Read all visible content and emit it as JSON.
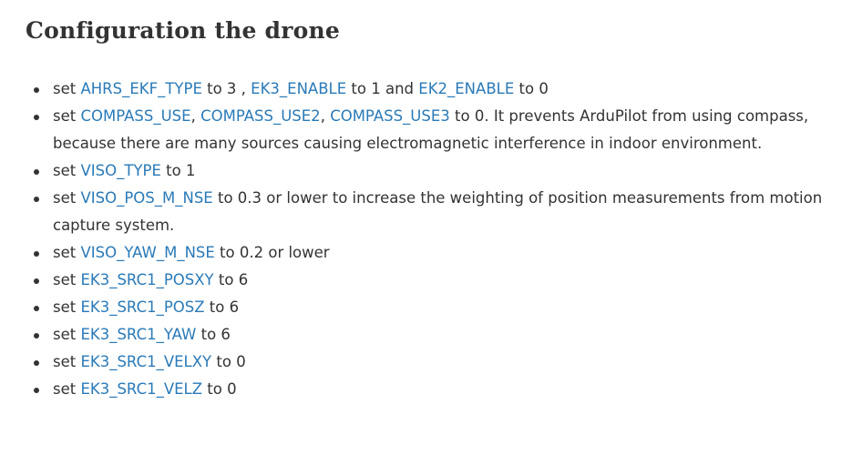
{
  "heading": "Configuration the drone",
  "items": [
    {
      "parts": [
        {
          "t": "set "
        },
        {
          "t": "AHRS_EKF_TYPE",
          "link": true
        },
        {
          "t": " to 3 , "
        },
        {
          "t": "EK3_ENABLE",
          "link": true
        },
        {
          "t": " to 1 and "
        },
        {
          "t": "EK2_ENABLE",
          "link": true
        },
        {
          "t": " to 0"
        }
      ]
    },
    {
      "parts": [
        {
          "t": "set "
        },
        {
          "t": "COMPASS_USE",
          "link": true
        },
        {
          "t": ", "
        },
        {
          "t": "COMPASS_USE2",
          "link": true
        },
        {
          "t": ", "
        },
        {
          "t": "COMPASS_USE3",
          "link": true
        },
        {
          "t": " to 0. It prevents ArduPilot from using compass, because there are many sources causing electromagnetic interference in indoor environment."
        }
      ]
    },
    {
      "parts": [
        {
          "t": "set "
        },
        {
          "t": "VISO_TYPE",
          "link": true
        },
        {
          "t": " to 1"
        }
      ]
    },
    {
      "parts": [
        {
          "t": "set "
        },
        {
          "t": "VISO_POS_M_NSE",
          "link": true
        },
        {
          "t": " to 0.3 or lower to increase the weighting of position measurements from motion capture system."
        }
      ]
    },
    {
      "parts": [
        {
          "t": "set "
        },
        {
          "t": "VISO_YAW_M_NSE",
          "link": true
        },
        {
          "t": " to 0.2 or lower"
        }
      ]
    },
    {
      "parts": [
        {
          "t": "set "
        },
        {
          "t": "EK3_SRC1_POSXY",
          "link": true
        },
        {
          "t": " to 6"
        }
      ]
    },
    {
      "parts": [
        {
          "t": "set "
        },
        {
          "t": "EK3_SRC1_POSZ",
          "link": true
        },
        {
          "t": " to 6"
        }
      ]
    },
    {
      "parts": [
        {
          "t": "set "
        },
        {
          "t": "EK3_SRC1_YAW",
          "link": true
        },
        {
          "t": " to 6"
        }
      ]
    },
    {
      "parts": [
        {
          "t": "set "
        },
        {
          "t": "EK3_SRC1_VELXY",
          "link": true
        },
        {
          "t": " to 0"
        }
      ]
    },
    {
      "parts": [
        {
          "t": "set "
        },
        {
          "t": "EK3_SRC1_VELZ",
          "link": true
        },
        {
          "t": " to 0"
        }
      ]
    }
  ],
  "colors": {
    "text": "#333333",
    "link": "#2a7ab8",
    "background": "#ffffff"
  }
}
